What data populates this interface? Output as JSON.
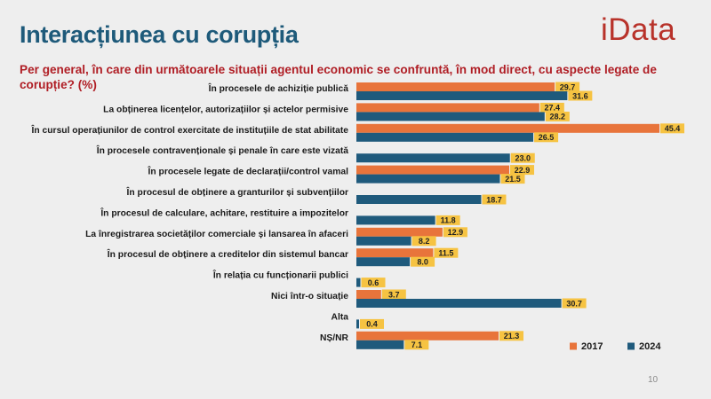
{
  "header": {
    "title": "Interacțiunea cu corupția",
    "logo": "iData",
    "question": "Per general, în care din următoarele situații agentul economic se confruntă, în mod direct, cu aspecte legate de corupție? (%)"
  },
  "footer": {
    "page_number": "10"
  },
  "colors": {
    "series_2017": "#e8743b",
    "series_2024": "#1f5a7c",
    "label_bg": "#f6c342"
  },
  "chart_data": {
    "type": "bar",
    "orientation": "horizontal",
    "title": "Per general, în care din următoarele situații agentul economic se confruntă, în mod direct, cu aspecte legate de corupție? (%)",
    "xlabel": "",
    "ylabel": "",
    "xlim": [
      0,
      46
    ],
    "grid": false,
    "legend": "bottom-right",
    "categories": [
      "În procesele de achiziție publică",
      "La obținerea licențelor, autorizațiilor și actelor permisive",
      "În cursul operațiunilor de control exercitate de instituțiile de stat abilitate",
      "În procesele contravenționale și penale în care este vizată",
      "În procesele legate de declarații/control vamal",
      "În procesul de obținere a granturilor și subvențiilor",
      "În procesul de calculare, achitare, restituire a impozitelor",
      "La înregistrarea societăților comerciale și lansarea în afaceri",
      "În procesul de obținere a creditelor din sistemul bancar",
      "În relația cu funcționarii publici",
      "Nici într-o situație",
      "Alta",
      "NȘ/NR"
    ],
    "series": [
      {
        "name": "2017",
        "color": "#e8743b",
        "values": [
          29.7,
          27.4,
          45.4,
          null,
          22.9,
          null,
          null,
          12.9,
          11.5,
          null,
          3.7,
          null,
          21.3
        ],
        "labels": [
          "29.7",
          "27.4",
          "45.4",
          null,
          "22.9",
          null,
          null,
          "12.9",
          "11.5",
          null,
          "3.7",
          null,
          "21.3"
        ]
      },
      {
        "name": "2024",
        "color": "#1f5a7c",
        "values": [
          31.6,
          28.2,
          26.5,
          23.0,
          21.5,
          18.7,
          11.8,
          8.2,
          8.0,
          0.6,
          30.7,
          0.4,
          7.1
        ],
        "labels": [
          "31.6",
          "28.2",
          "26.5",
          "23.0",
          "21.5",
          "18.7",
          "11.8",
          "8.2",
          "8.0",
          "0.6",
          "30.7",
          "0.4",
          "7.1"
        ]
      }
    ]
  }
}
